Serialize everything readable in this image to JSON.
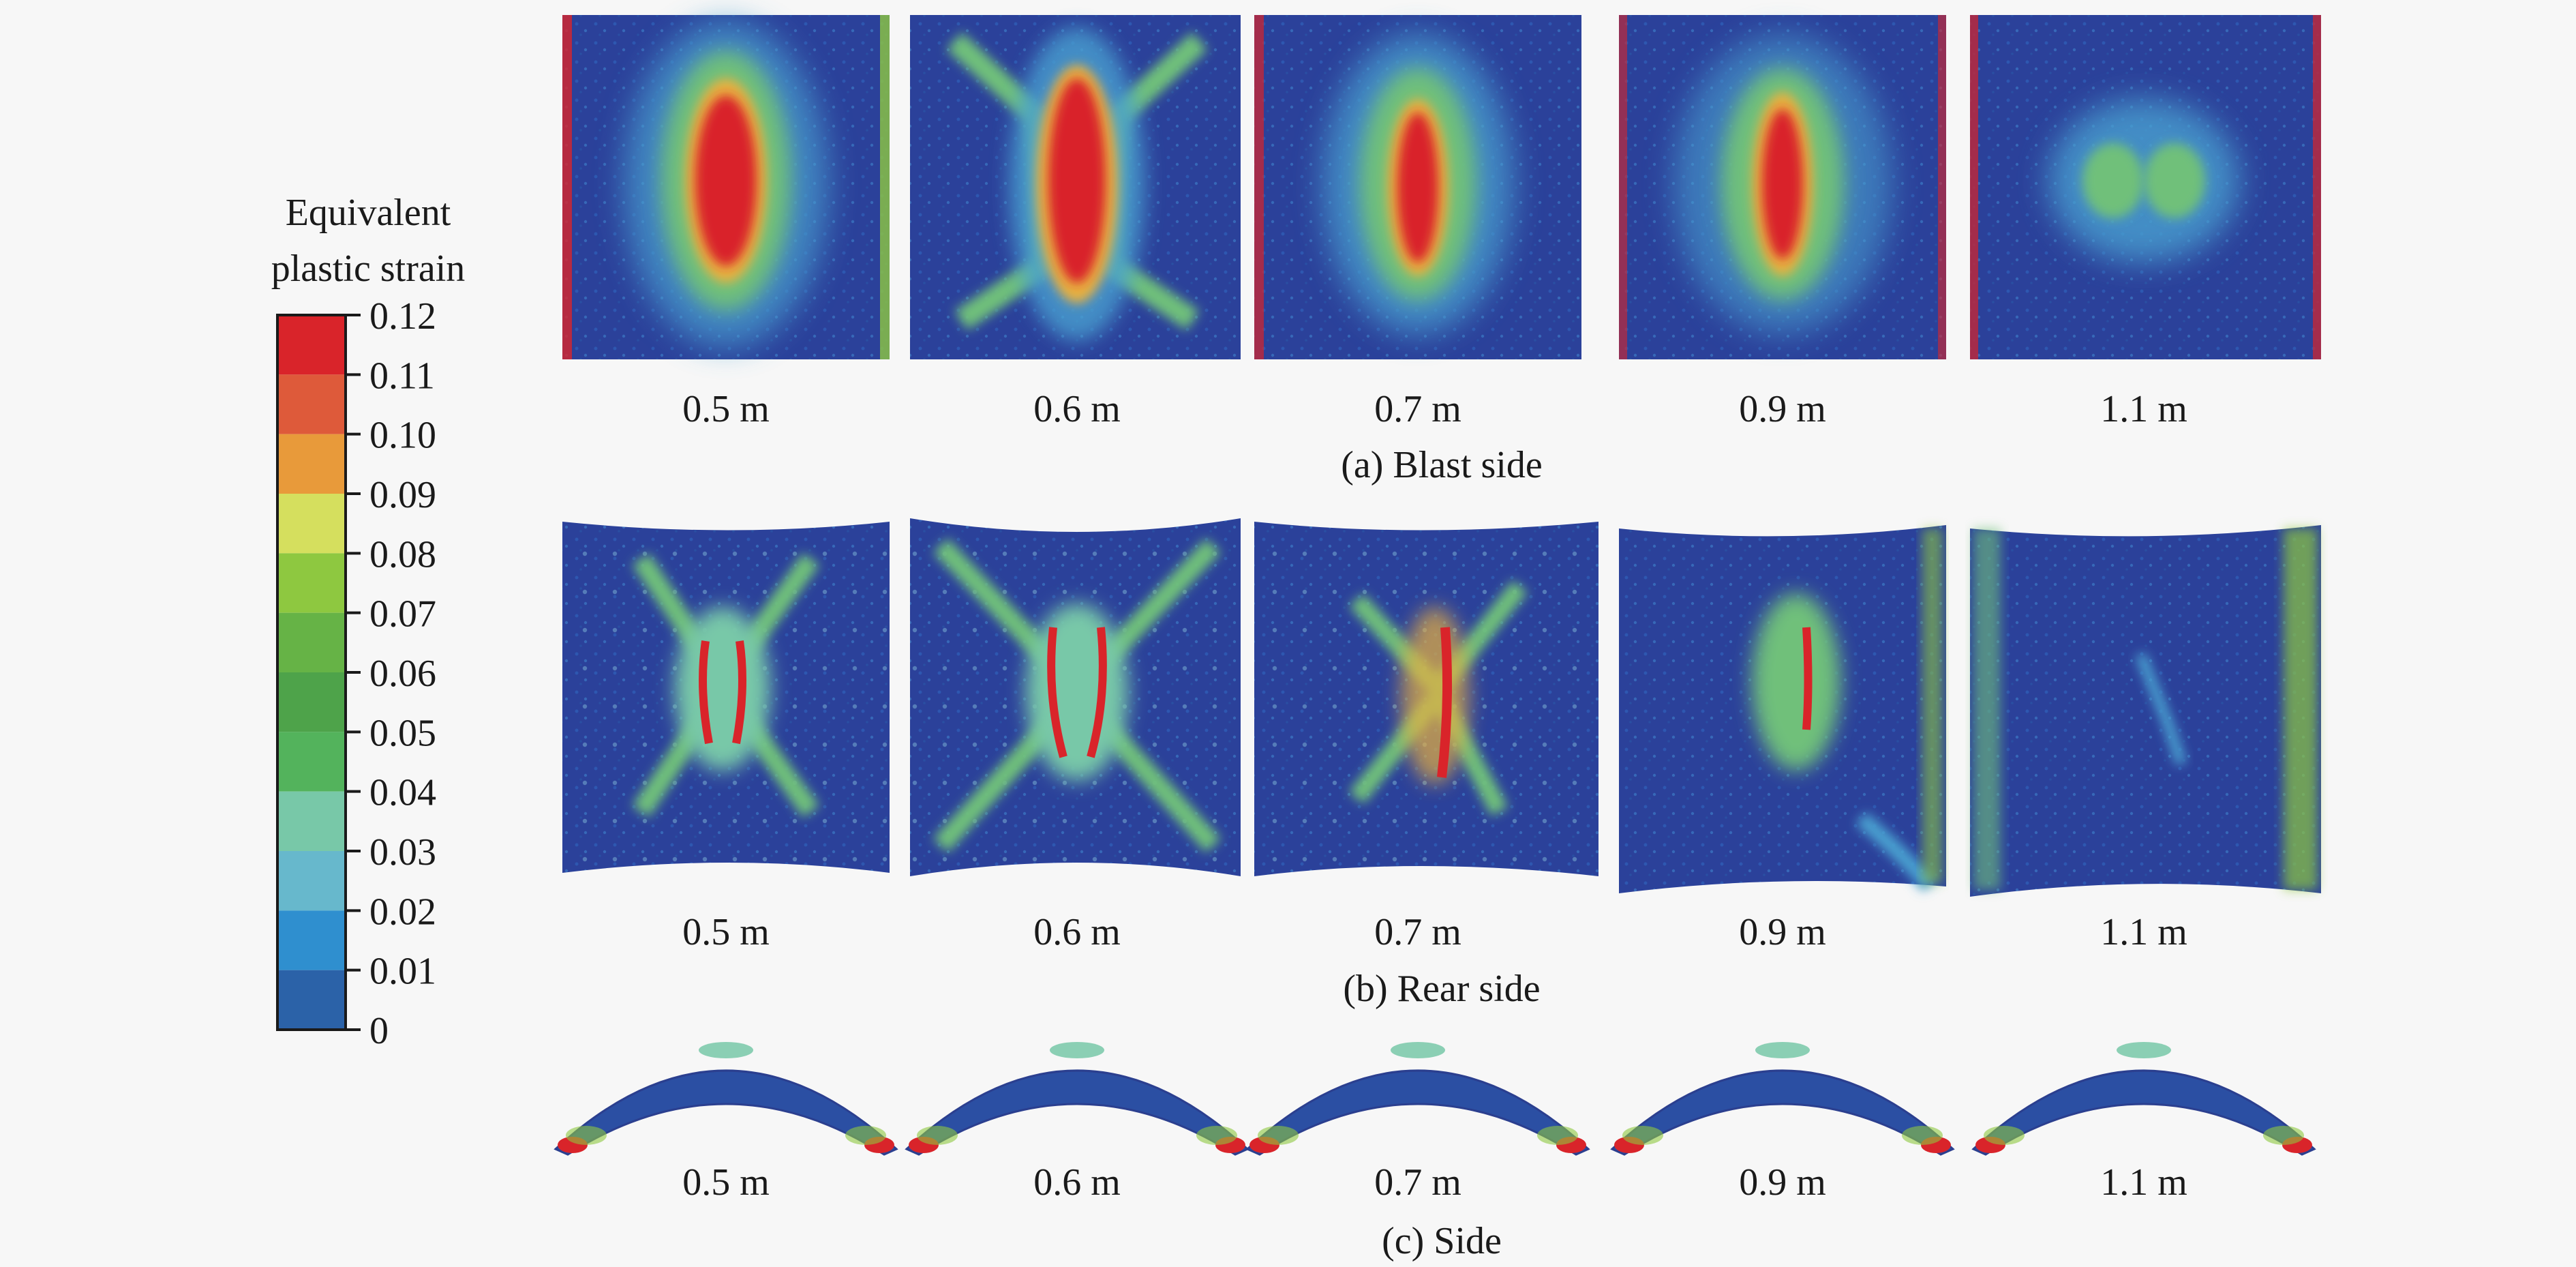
{
  "legend": {
    "title_line1": "Equivalent",
    "title_line2": "plastic strain",
    "ticks": [
      "0.12",
      "0.11",
      "0.10",
      "0.09",
      "0.08",
      "0.07",
      "0.06",
      "0.05",
      "0.04",
      "0.03",
      "0.02",
      "0.01",
      "0"
    ],
    "colors": [
      "#d9242a",
      "#de5a3a",
      "#e89a3a",
      "#d5df5e",
      "#8ec840",
      "#66b346",
      "#4ea34a",
      "#53b35c",
      "#78c8a8",
      "#67b8cc",
      "#2f8fcf",
      "#2b62a8",
      "#2b419a"
    ]
  },
  "rows": [
    {
      "caption": "(a) Blast side",
      "distances": [
        "0.5 m",
        "0.6 m",
        "0.7 m",
        "0.9 m",
        "1.1 m"
      ]
    },
    {
      "caption": "(b) Rear side",
      "distances": [
        "0.5 m",
        "0.6 m",
        "0.7 m",
        "0.9 m",
        "1.1 m"
      ]
    },
    {
      "caption": "(c) Side",
      "distances": [
        "0.5 m",
        "0.6 m",
        "0.7 m",
        "0.9 m",
        "1.1 m"
      ]
    }
  ]
}
